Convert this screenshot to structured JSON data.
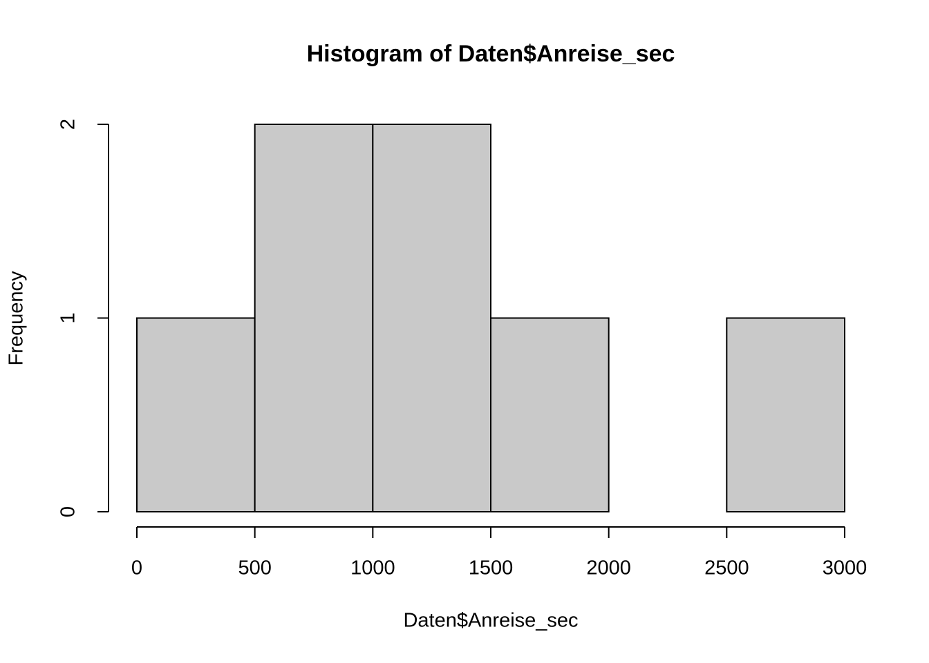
{
  "chart_data": {
    "type": "histogram",
    "title": "Histogram of Daten$Anreise_sec",
    "x_label": "Daten$Anreise_sec",
    "y_label": "Frequency",
    "bins": [
      0,
      500,
      1000,
      1500,
      2000,
      2500,
      3000
    ],
    "values": [
      1,
      2,
      2,
      1,
      0,
      1
    ],
    "color": "#c9c9c9",
    "xlim": [
      0,
      3000
    ],
    "xticks": [
      0,
      500,
      1000,
      1500,
      2000,
      2500,
      3000
    ],
    "ylim": [
      0,
      2
    ],
    "yticks": [
      0,
      1,
      2
    ]
  }
}
